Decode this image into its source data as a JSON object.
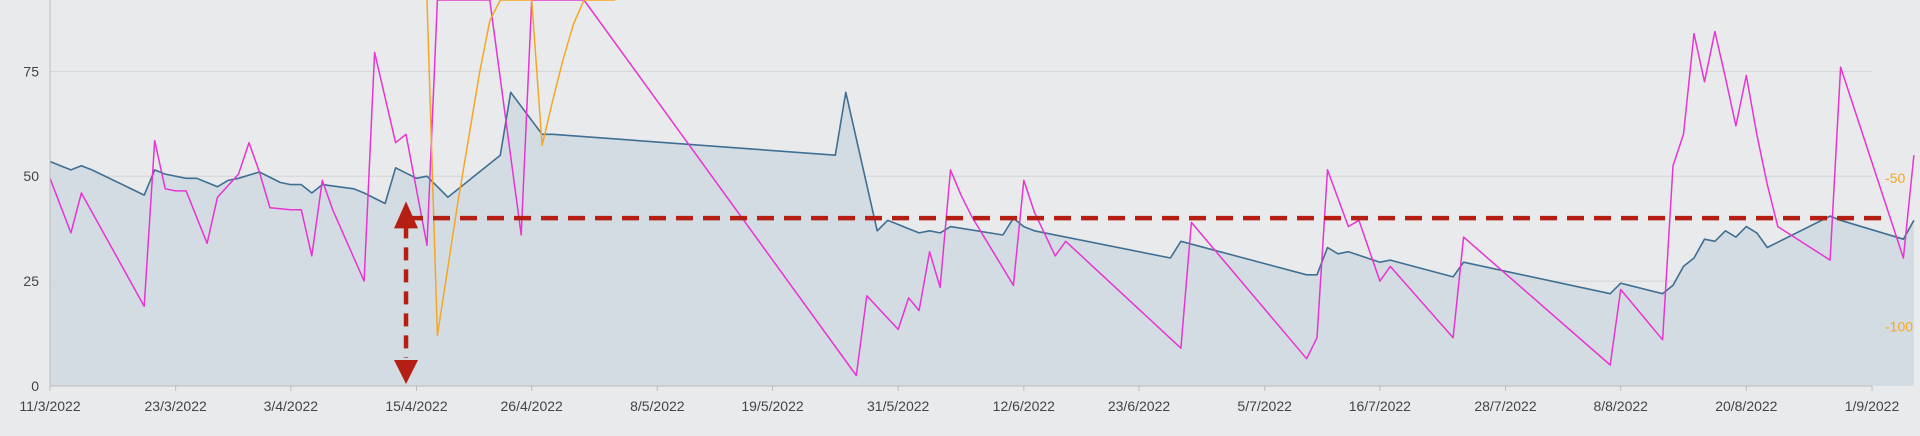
{
  "chart_data": {
    "type": "line",
    "title": "",
    "xlabel": "",
    "ylabel": "",
    "x_tick_labels": [
      "11/3/2022",
      "23/3/2022",
      "3/4/2022",
      "15/4/2022",
      "26/4/2022",
      "8/5/2022",
      "19/5/2022",
      "31/5/2022",
      "12/6/2022",
      "23/6/2022",
      "5/7/2022",
      "16/7/2022",
      "28/7/2022",
      "8/8/2022",
      "20/8/2022",
      "1/9/2022"
    ],
    "y_left": {
      "ticks": [
        "0",
        "25",
        "50",
        "75"
      ],
      "ylim": [
        0,
        92
      ]
    },
    "y_right": {
      "ticks": [
        "-50",
        "-100"
      ],
      "ylim": [
        -120,
        10
      ]
    },
    "grid": true,
    "series": [
      {
        "axis": "left",
        "color": "#3f6f92",
        "fill": "#d0d9e2",
        "x": [
          "11/3/2022",
          "12/3/2022",
          "13/3/2022",
          "14/3/2022",
          "15/3/2022",
          "20/3/2022",
          "21/3/2022",
          "22/3/2022",
          "24/3/2022",
          "25/3/2022",
          "26/3/2022",
          "27/3/2022",
          "28/3/2022",
          "29/3/2022",
          "31/3/2022",
          "2/4/2022",
          "3/4/2022",
          "4/4/2022",
          "5/4/2022",
          "6/4/2022",
          "9/4/2022",
          "10/4/2022",
          "12/4/2022",
          "13/4/2022",
          "15/4/2022",
          "16/4/2022",
          "17/4/2022",
          "18/4/2022",
          "23/4/2022",
          "24/4/2022",
          "27/4/2022",
          "28/4/2022",
          "25/5/2022",
          "26/5/2022",
          "29/5/2022",
          "30/5/2022",
          "31/5/2022",
          "1/6/2022",
          "2/6/2022",
          "3/6/2022",
          "4/6/2022",
          "5/6/2022",
          "10/6/2022",
          "11/6/2022",
          "12/6/2022",
          "13/6/2022",
          "26/6/2022",
          "27/6/2022",
          "9/7/2022",
          "10/7/2022",
          "11/7/2022",
          "12/7/2022",
          "13/7/2022",
          "16/7/2022",
          "17/7/2022",
          "23/7/2022",
          "24/7/2022",
          "7/8/2022",
          "8/8/2022",
          "12/8/2022",
          "13/8/2022",
          "14/8/2022",
          "15/8/2022",
          "16/8/2022",
          "17/8/2022",
          "18/8/2022",
          "19/8/2022",
          "20/8/2022",
          "21/8/2022",
          "22/8/2022",
          "28/8/2022",
          "29/8/2022",
          "4/9/2022",
          "5/9/2022"
        ],
        "y": [
          53.5,
          52.5,
          51.5,
          52.5,
          51.5,
          45.5,
          51.5,
          50.5,
          49.5,
          49.5,
          48.5,
          47.5,
          49,
          49.5,
          51,
          48.5,
          48,
          48,
          46,
          48,
          47,
          46,
          43.5,
          52,
          49.5,
          50,
          47.5,
          45,
          55,
          70,
          60,
          60,
          55,
          70,
          37,
          39.5,
          38.5,
          37.5,
          36.5,
          37,
          36.5,
          38,
          36,
          40,
          38,
          37,
          30.5,
          34.5,
          26.5,
          26.5,
          33,
          31.5,
          32,
          29.5,
          30,
          26,
          29.5,
          22,
          24.5,
          22,
          24,
          28.5,
          30.5,
          35,
          34.5,
          37,
          35.5,
          38,
          36.5,
          33,
          40.5,
          39.5,
          35,
          39.5
        ]
      },
      {
        "axis": "left",
        "color": "#e834d2",
        "x": [
          "11/3/2022",
          "13/3/2022",
          "14/3/2022",
          "20/3/2022",
          "21/3/2022",
          "22/3/2022",
          "23/3/2022",
          "24/3/2022",
          "26/3/2022",
          "27/3/2022",
          "29/3/2022",
          "30/3/2022",
          "31/3/2022",
          "1/4/2022",
          "3/4/2022",
          "4/4/2022",
          "5/4/2022",
          "6/4/2022",
          "7/4/2022",
          "10/4/2022",
          "11/4/2022",
          "13/4/2022",
          "14/4/2022",
          "16/4/2022",
          "17/4/2022",
          "18/4/2022",
          "19/4/2022",
          "22/4/2022",
          "25/4/2022",
          "26/4/2022",
          "30/4/2022",
          "1/5/2022",
          "27/5/2022",
          "28/5/2022",
          "31/5/2022",
          "1/6/2022",
          "2/6/2022",
          "3/6/2022",
          "4/6/2022",
          "5/6/2022",
          "6/6/2022",
          "7/6/2022",
          "11/6/2022",
          "12/6/2022",
          "13/6/2022",
          "15/6/2022",
          "16/6/2022",
          "27/6/2022",
          "28/6/2022",
          "9/7/2022",
          "10/7/2022",
          "11/7/2022",
          "13/7/2022",
          "14/7/2022",
          "16/7/2022",
          "17/7/2022",
          "23/7/2022",
          "24/7/2022",
          "7/8/2022",
          "8/8/2022",
          "12/8/2022",
          "13/8/2022",
          "14/8/2022",
          "15/8/2022",
          "16/8/2022",
          "17/8/2022",
          "18/8/2022",
          "19/8/2022",
          "20/8/2022",
          "21/8/2022",
          "22/8/2022",
          "23/8/2022",
          "28/8/2022",
          "29/8/2022",
          "4/9/2022",
          "5/9/2022"
        ],
        "y": [
          49.5,
          36.5,
          46,
          19,
          58.5,
          47,
          46.5,
          46.5,
          34,
          45,
          50.5,
          58,
          51,
          42.5,
          42,
          42,
          31,
          49,
          42,
          25,
          79.5,
          58,
          60,
          33.5,
          92,
          92,
          92,
          92,
          36,
          92,
          92,
          92,
          2.5,
          21.5,
          13.5,
          21,
          18,
          32,
          23.5,
          51.5,
          45.5,
          40.5,
          24,
          49,
          41.5,
          31,
          34.5,
          9,
          39,
          6.5,
          11.5,
          51.5,
          38,
          39.5,
          25,
          28.5,
          11.5,
          35.5,
          5,
          23,
          11,
          52.5,
          60,
          84,
          72.5,
          84.5,
          73.5,
          62,
          74,
          60,
          48,
          38,
          30,
          76,
          30.5,
          55
        ]
      },
      {
        "axis": "right",
        "color": "#f5a623",
        "x": [
          "16/4/2022",
          "17/4/2022",
          "18/4/2022",
          "19/4/2022",
          "20/4/2022",
          "21/4/2022",
          "22/4/2022",
          "23/4/2022",
          "24/4/2022",
          "25/4/2022",
          "26/4/2022",
          "27/4/2022",
          "28/4/2022",
          "29/4/2022",
          "30/4/2022",
          "1/5/2022",
          "2/5/2022",
          "3/5/2022",
          "4/5/2022"
        ],
        "y": [
          10,
          -103,
          -80,
          -57,
          -36,
          -15,
          3,
          10,
          10,
          10,
          10,
          -39,
          -24,
          -10,
          2,
          10,
          10,
          10,
          10
        ]
      }
    ],
    "annotation_line": {
      "value": 40,
      "color": "#b51e12",
      "style": "dashed"
    },
    "annotation_arrow": {
      "x": "14/4/2022",
      "from": 0,
      "to": 44,
      "color": "#b51e12",
      "style": "dashed-double-arrow"
    }
  }
}
